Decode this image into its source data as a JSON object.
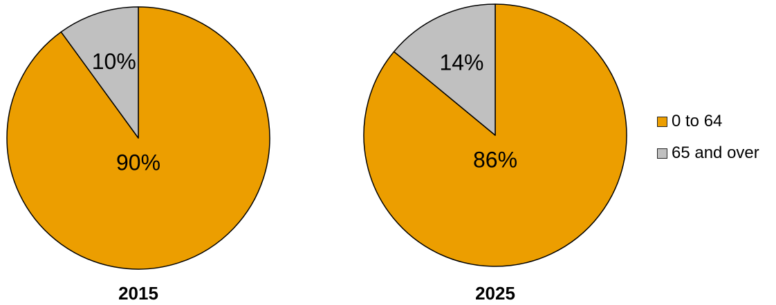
{
  "chart_data": [
    {
      "type": "pie",
      "title": "2015",
      "slices": [
        {
          "label": "0 to 64",
          "value": 90,
          "display": "90%"
        },
        {
          "label": "65 and over",
          "value": 10,
          "display": "10%"
        }
      ]
    },
    {
      "type": "pie",
      "title": "2025",
      "slices": [
        {
          "label": "0 to 64",
          "value": 86,
          "display": "86%"
        },
        {
          "label": "65 and over",
          "value": 14,
          "display": "14%"
        }
      ]
    }
  ],
  "legend": {
    "placement": "right",
    "items": [
      {
        "label": "0 to 64",
        "color": "#EC9E00"
      },
      {
        "label": "65 and over",
        "color": "#C0C0C0"
      }
    ]
  }
}
